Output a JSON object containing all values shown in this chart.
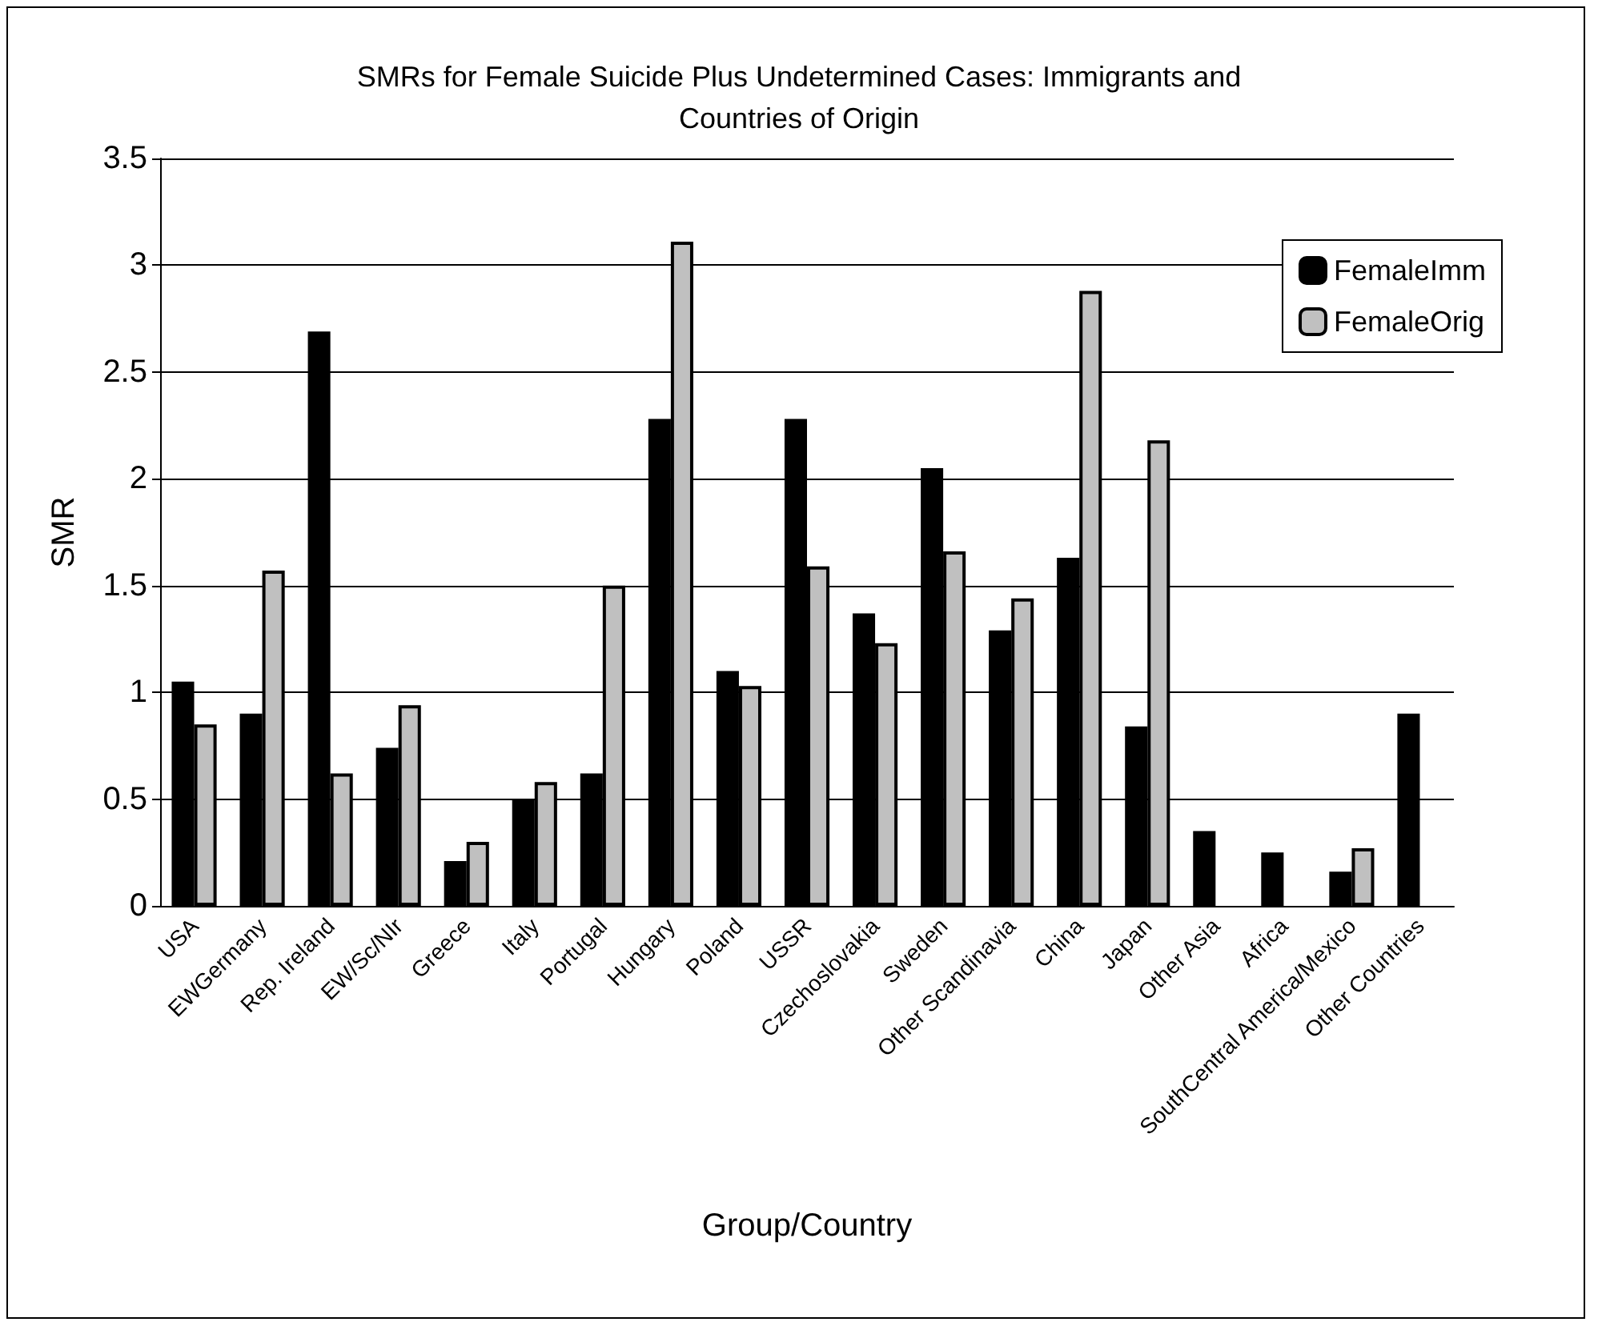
{
  "chart_data": {
    "type": "bar",
    "title": "SMRs for Female Suicide Plus Undetermined Cases: Immigrants and\nCountries of Origin",
    "xlabel": "Group/Country",
    "ylabel": "SMR",
    "categories": [
      "USA",
      "EWGermany",
      "Rep. Ireland",
      "EW/Sc/NIr",
      "Greece",
      "Italy",
      "Portugal",
      "Hungary",
      "Poland",
      "USSR",
      "Czechoslovakia",
      "Sweden",
      "Other Scandinavia",
      "China",
      "Japan",
      "Other Asia",
      "Africa",
      "SouthCentral America/Mexico",
      "Other Countries"
    ],
    "series": [
      {
        "name": "FemaleImm",
        "color": "#000000",
        "values": [
          1.05,
          0.9,
          2.69,
          0.74,
          0.21,
          0.5,
          0.62,
          2.28,
          1.1,
          2.28,
          1.37,
          2.05,
          1.29,
          1.63,
          0.84,
          0.35,
          0.25,
          0.16,
          0.9
        ]
      },
      {
        "name": "FemaleOrig",
        "color": "#c0c0c0",
        "values": [
          0.85,
          1.57,
          0.62,
          0.94,
          0.3,
          0.58,
          1.5,
          3.11,
          1.03,
          1.59,
          1.23,
          1.66,
          1.44,
          2.88,
          2.18,
          null,
          null,
          0.27,
          null
        ]
      }
    ],
    "ylim": [
      0,
      3.5
    ],
    "yticks": [
      0,
      0.5,
      1,
      1.5,
      2,
      2.5,
      3,
      3.5
    ],
    "grid": "y",
    "legend": "top right"
  }
}
